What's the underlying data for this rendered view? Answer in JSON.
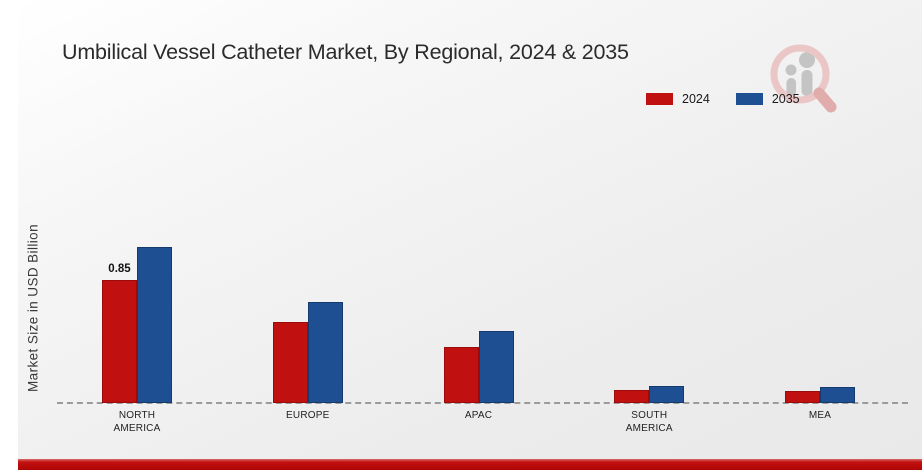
{
  "page": {
    "title": "Umbilical Vessel Catheter Market, By Regional, 2024 & 2035",
    "ylabel": "Market Size in USD Billion"
  },
  "colors": {
    "series_2024": "#c11010",
    "series_2024_border": "#9c0b0b",
    "series_2035": "#1e4f92",
    "series_2035_border": "#153a6d",
    "accent_strip": "#bf0b0b",
    "slide_background": "#ededed",
    "baseline": "#9b9b9b",
    "logo_ring": "#eac6c6",
    "logo_handle": "#e0acac",
    "logo_gray": "#c4c4c4"
  },
  "chart_data": {
    "type": "bar",
    "title": "Umbilical Vessel Catheter Market, By Regional, 2024 & 2035",
    "xlabel": "",
    "ylabel": "Market Size in USD Billion",
    "categories": [
      "NORTH AMERICA",
      "EUROPE",
      "APAC",
      "SOUTH AMERICA",
      "MEA"
    ],
    "series": [
      {
        "name": "2024",
        "color": "#c11010",
        "border": "#9c0b0b",
        "values": [
          0.85,
          0.56,
          0.39,
          0.09,
          0.08
        ]
      },
      {
        "name": "2035",
        "color": "#1e4f92",
        "border": "#153a6d",
        "values": [
          1.08,
          0.7,
          0.5,
          0.12,
          0.11
        ]
      }
    ],
    "data_labels": [
      {
        "series": "2024",
        "category": "NORTH AMERICA",
        "text": "0.85"
      }
    ],
    "ylim": [
      0,
      1.2
    ],
    "grid": false,
    "baseline_style": "dashed",
    "legend_position": "top-right"
  },
  "logo": {
    "name": "magnifier-growth-chart-logo"
  }
}
